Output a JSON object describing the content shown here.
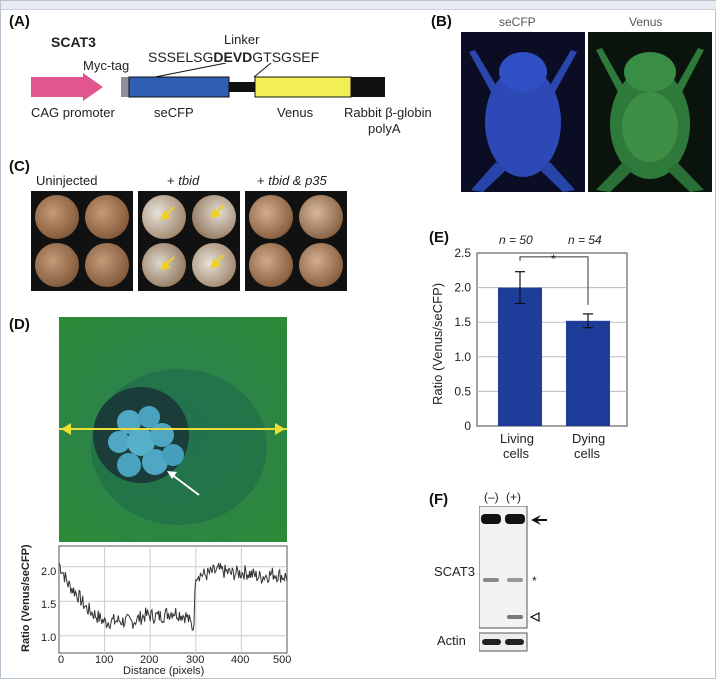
{
  "panels": {
    "A": {
      "label": "(A)",
      "construct_name": "SCAT3",
      "myc_tag": "Myc-tag",
      "linker_title": "Linker",
      "linker_seq_pre": "SSSELSG",
      "linker_seq_bold": "DEVD",
      "linker_seq_post": "GTSGSEF",
      "promoter": "CAG promoter",
      "seCFP": "seCFP",
      "venus": "Venus",
      "polyA_line1": "Rabbit β-globin",
      "polyA_line2": "polyA",
      "colors": {
        "promoter": "#e2568f",
        "seCFP": "#2f5fb4",
        "venus": "#f1ef55",
        "linker": "#111111",
        "myc": "#8c9198"
      }
    },
    "B": {
      "label": "(B)",
      "left_title": "seCFP",
      "right_title": "Venus"
    },
    "C": {
      "label": "(C)",
      "groups": [
        "Uninjected",
        "+ ",
        "+ "
      ],
      "group_italic": [
        "",
        "tbid",
        "tbid & p35"
      ]
    },
    "D": {
      "label": "(D)",
      "ylabel": "Ratio (Venus/seCFP)",
      "xlabel": "Distance (pixels)",
      "x_ticks": [
        "0",
        "100",
        "200",
        "300",
        "400",
        "500"
      ],
      "y_ticks": [
        "2.0",
        "1.5",
        "1.0"
      ]
    },
    "E": {
      "label": "(E)",
      "n_labels": [
        "n = 50",
        "n = 54"
      ],
      "star": "*"
    },
    "F": {
      "label": "(F)",
      "lane_labels": [
        "(–)",
        "(+)"
      ],
      "scat3": "SCAT3",
      "actin": "Actin",
      "band_marks": [
        "*"
      ]
    }
  },
  "chart_data": [
    {
      "type": "bar",
      "panel": "E",
      "categories": [
        "Living cells",
        "Dying cells"
      ],
      "category_lines": [
        [
          "Living",
          "cells"
        ],
        [
          "Dying",
          "cells"
        ]
      ],
      "values": [
        2.0,
        1.52
      ],
      "errors": [
        0.23,
        0.1
      ],
      "ylabel": "Ratio (Venus/seCFP)",
      "ylim": [
        0,
        2.5
      ],
      "y_ticks": [
        "0",
        "0.5",
        "1.0",
        "1.5",
        "2.0",
        "2.5"
      ],
      "bar_color": "#1e3d9a",
      "grid": true
    },
    {
      "type": "line",
      "panel": "D",
      "xlabel": "Distance (pixels)",
      "ylabel": "Ratio (Venus/seCFP)",
      "xlim": [
        0,
        500
      ],
      "ylim": [
        0.75,
        2.3
      ],
      "x": [
        0,
        20,
        40,
        60,
        80,
        100,
        130,
        160,
        190,
        220,
        250,
        280,
        295,
        300,
        320,
        350,
        380,
        410,
        440,
        470,
        500
      ],
      "values": [
        2.05,
        1.75,
        1.6,
        1.4,
        1.3,
        1.2,
        1.22,
        1.2,
        1.3,
        1.28,
        1.35,
        1.28,
        1.1,
        1.9,
        1.88,
        1.95,
        1.9,
        1.92,
        1.85,
        1.9,
        1.85
      ],
      "grid": true
    }
  ]
}
